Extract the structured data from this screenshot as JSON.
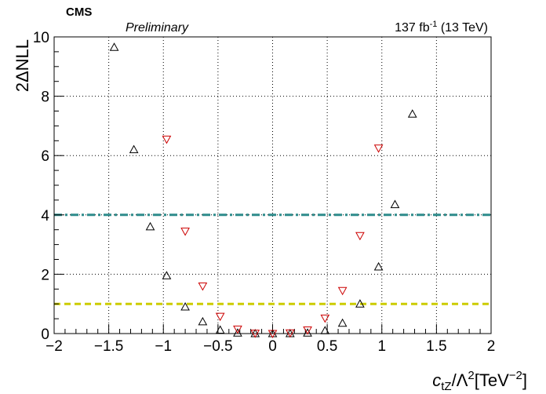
{
  "header": {
    "experiment": "CMS",
    "status": "Preliminary",
    "lumi_value": "137 fb",
    "lumi_exp": "-1",
    "energy": " (13 TeV)"
  },
  "chart_data": {
    "type": "scatter",
    "title": "",
    "ylabel": "2ΔNLL",
    "xlabel": {
      "c": "c",
      "sub": "tZ",
      "slash": "/Λ",
      "sup2": "2",
      "unit": "[TeV",
      "unit_exp": "−2",
      "close": "]"
    },
    "xlim": [
      -2,
      2
    ],
    "ylim": [
      0,
      10
    ],
    "x_ticks": [
      -2,
      -1.5,
      -1,
      -0.5,
      0,
      0.5,
      1,
      1.5,
      2
    ],
    "x_tick_labels": [
      "−2",
      "−1.5",
      "−1",
      "−0.5",
      "0",
      "0.5",
      "1",
      "1.5",
      "2"
    ],
    "y_ticks": [
      0,
      2,
      4,
      6,
      8,
      10
    ],
    "y_tick_labels": [
      "0",
      "2",
      "4",
      "6",
      "8",
      "10"
    ],
    "grid": true,
    "reference_lines": [
      {
        "y": 4,
        "color": "#2e8b8b",
        "style": "dash-dot"
      },
      {
        "y": 1,
        "color": "#cccc00",
        "style": "dash"
      }
    ],
    "series": [
      {
        "marker": "triangle-up",
        "color": "#000000",
        "x": [
          -1.45,
          -1.27,
          -1.12,
          -0.97,
          -0.8,
          -0.64,
          -0.48,
          -0.32,
          -0.16,
          0.0,
          0.16,
          0.32,
          0.48,
          0.64,
          0.8,
          0.97,
          1.12,
          1.28
        ],
        "y": [
          9.65,
          6.2,
          3.6,
          1.95,
          0.9,
          0.4,
          0.12,
          0.02,
          0.0,
          0.0,
          0.0,
          0.02,
          0.1,
          0.35,
          1.0,
          2.25,
          4.35,
          7.4
        ]
      },
      {
        "marker": "triangle-down",
        "color": "#cc0000",
        "x": [
          -0.97,
          -0.8,
          -0.64,
          -0.48,
          -0.32,
          -0.16,
          0.0,
          0.16,
          0.32,
          0.48,
          0.64,
          0.8,
          0.97
        ],
        "y": [
          6.55,
          3.45,
          1.6,
          0.58,
          0.15,
          0.01,
          0.0,
          0.02,
          0.12,
          0.52,
          1.45,
          3.3,
          6.25
        ]
      }
    ]
  }
}
